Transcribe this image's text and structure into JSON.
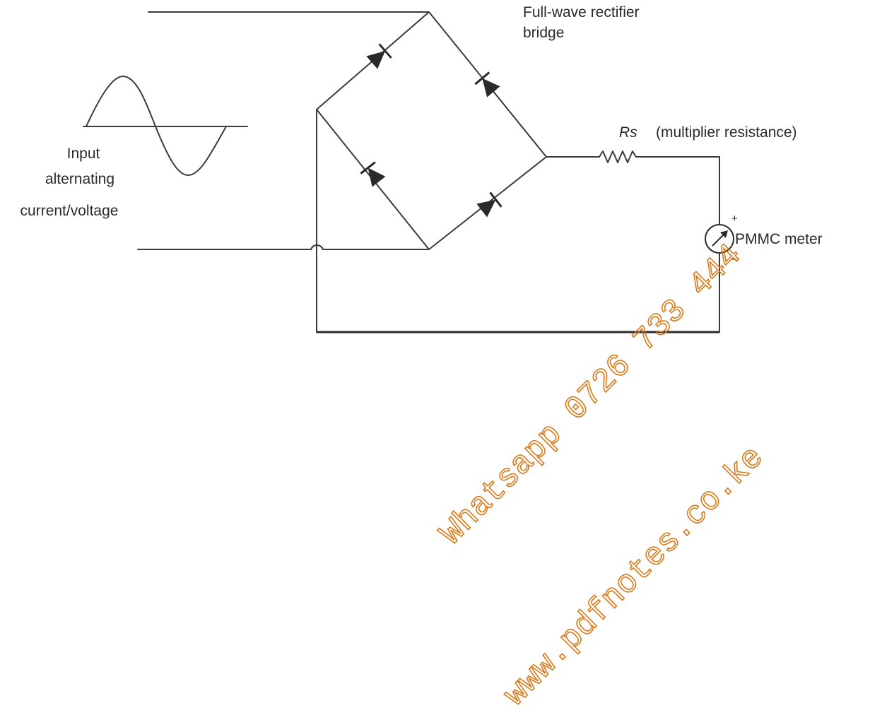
{
  "labels": {
    "bridge_line1": "Full-wave rectifier",
    "bridge_line2": "bridge",
    "rs_symbol": "Rs",
    "rs_desc": "(multiplier resistance)",
    "input_line1": "Input",
    "input_line2": "alternating",
    "input_line3": "current/voltage",
    "meter": "PMMC meter",
    "plus": "+",
    "minus": "−"
  },
  "watermark": {
    "line1": "Whatsapp 0726 733 444",
    "line2": "www.pdfnotes.co.ke",
    "color": "#d97a1a"
  },
  "colors": {
    "wire": "#3a3a3a",
    "text": "#2a2a2a",
    "background": "#ffffff"
  }
}
